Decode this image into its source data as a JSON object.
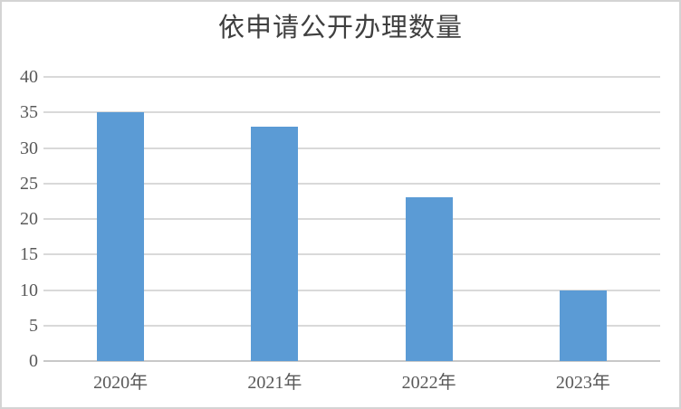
{
  "frame": {
    "background": "#FFFFFF",
    "border_color": "#D4D4D4"
  },
  "chart_data": {
    "type": "bar",
    "title": "依申请公开办理数量",
    "categories": [
      "2020年",
      "2021年",
      "2022年",
      "2023年"
    ],
    "values": [
      35,
      33,
      23,
      10
    ],
    "xlabel": "",
    "ylabel": "",
    "ylim": [
      0,
      40
    ],
    "yticks": [
      0,
      5,
      10,
      15,
      20,
      25,
      30,
      35,
      40
    ],
    "grid": true,
    "legend": "none",
    "colors": {
      "bar": "#5B9BD5",
      "gridline": "#D9D9D9",
      "zero_line": "#C8C8C8",
      "tick_label": "#595959",
      "title": "#3F3F3F"
    }
  }
}
